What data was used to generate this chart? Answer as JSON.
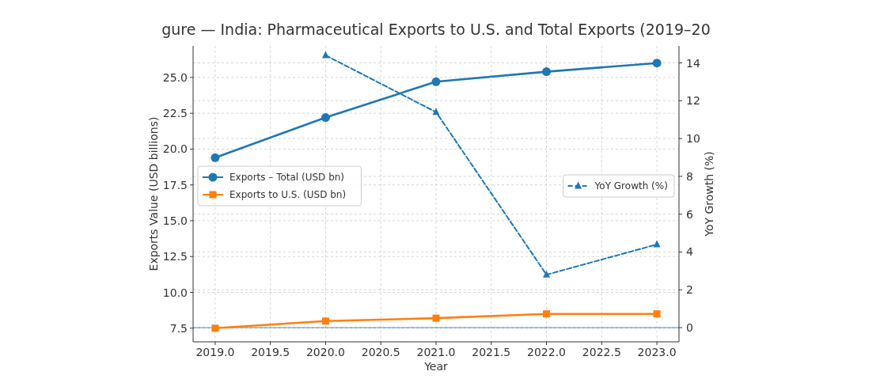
{
  "chart_data": {
    "type": "line",
    "title": "gure — India: Pharmaceutical Exports to U.S. and Total Exports (2019–20",
    "xlabel": "Year",
    "ylabel": "Exports Value (USD billions)",
    "y2label": "YoY Growth (%)",
    "x": [
      2019,
      2020,
      2021,
      2022,
      2023
    ],
    "series": [
      {
        "name": "Exports – Total (USD bn)",
        "color": "#1f77b4",
        "values": [
          19.4,
          22.2,
          24.7,
          25.4,
          26.0
        ],
        "marker": "circle",
        "line_style": "solid"
      },
      {
        "name": "Exports to U.S. (USD bn)",
        "color": "#ff7f0e",
        "values": [
          7.5,
          8.0,
          8.2,
          8.5,
          8.5
        ],
        "marker": "square",
        "line_style": "solid"
      },
      {
        "name": "YoY Growth (%)",
        "color": "#1f77b4",
        "values": [
          null,
          14.4,
          11.4,
          2.8,
          4.4
        ],
        "marker": "triangle",
        "line_style": "dashed",
        "axis": "y2"
      }
    ],
    "xlim": [
      2018.8,
      2023.2
    ],
    "xticks": [
      {
        "value": 2019,
        "label": "2019.0"
      },
      2019.5,
      {
        "value": 2020,
        "label": "2020.0"
      },
      2020.5,
      {
        "value": 2021,
        "label": "2021.0"
      },
      2021.5,
      {
        "value": 2022,
        "label": "2022.0"
      },
      2022.5,
      {
        "value": 2023,
        "label": "2023.0"
      }
    ],
    "ylim": [
      6.55,
      27.2
    ],
    "yticks": [
      7.5,
      {
        "value": 10,
        "label": "10.0"
      },
      12.5,
      {
        "value": 15,
        "label": "15.0"
      },
      17.5,
      {
        "value": 20,
        "label": "20.0"
      },
      22.5,
      {
        "value": 25,
        "label": "25.0"
      }
    ],
    "y2lim": [
      -0.75,
      14.9
    ],
    "y2ticks": [
      0,
      2,
      4,
      6,
      8,
      10,
      12,
      14
    ],
    "ref_lines": [
      {
        "axis": "y2",
        "value": 0,
        "color": "#1f77b4"
      }
    ],
    "grid": true,
    "legend": "center left"
  }
}
